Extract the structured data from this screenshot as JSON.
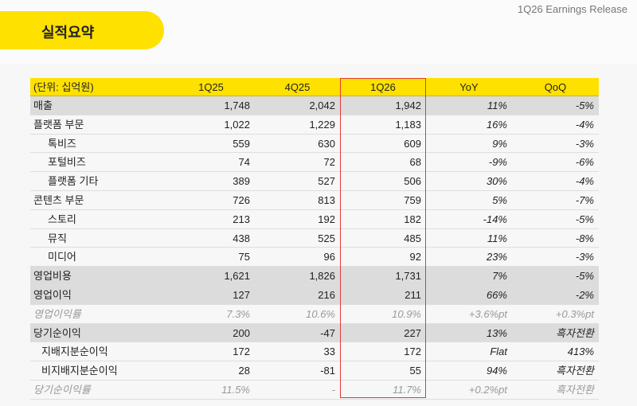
{
  "header": {
    "title": "실적요약",
    "release": "1Q26 Earnings Release"
  },
  "table": {
    "columns": [
      "(단위: 십억원)",
      "1Q25",
      "4Q25",
      "1Q26",
      "YoY",
      "QoQ"
    ],
    "rows": [
      [
        "매출",
        "1,748",
        "2,042",
        "1,942",
        "11%",
        "-5%"
      ],
      [
        "플랫폼 부문",
        "1,022",
        "1,229",
        "1,183",
        "16%",
        "-4%"
      ],
      [
        "톡비즈",
        "559",
        "630",
        "609",
        "9%",
        "-3%"
      ],
      [
        "포털비즈",
        "74",
        "72",
        "68",
        "-9%",
        "-6%"
      ],
      [
        "플랫폼 기타",
        "389",
        "527",
        "506",
        "30%",
        "-4%"
      ],
      [
        "콘텐츠 부문",
        "726",
        "813",
        "759",
        "5%",
        "-7%"
      ],
      [
        "스토리",
        "213",
        "192",
        "182",
        "-14%",
        "-5%"
      ],
      [
        "뮤직",
        "438",
        "525",
        "485",
        "11%",
        "-8%"
      ],
      [
        "미디어",
        "75",
        "96",
        "92",
        "23%",
        "-3%"
      ],
      [
        "영업비용",
        "1,621",
        "1,826",
        "1,731",
        "7%",
        "-5%"
      ],
      [
        "영업이익",
        "127",
        "216",
        "211",
        "66%",
        "-2%"
      ],
      [
        "영업이익률",
        "7.3%",
        "10.6%",
        "10.9%",
        "+3.6%pt",
        "+0.3%pt"
      ],
      [
        "당기순이익",
        "200",
        "-47",
        "227",
        "13%",
        "흑자전환"
      ],
      [
        "지배지분순이익",
        "172",
        "33",
        "172",
        "Flat",
        "413%"
      ],
      [
        "비지배지분순이익",
        "28",
        "-81",
        "55",
        "94%",
        "흑자전환"
      ],
      [
        "당기순이익률",
        "11.5%",
        "-",
        "11.7%",
        "+0.2%pt",
        "흑자전환"
      ]
    ]
  }
}
